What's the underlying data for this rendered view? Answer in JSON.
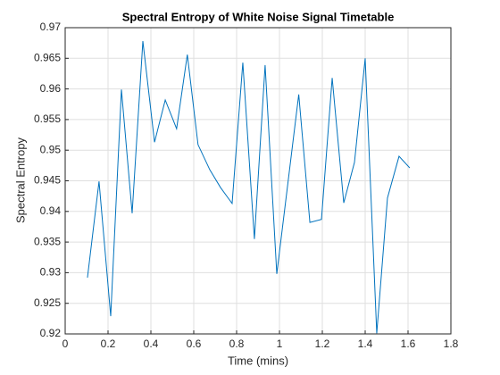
{
  "chart_data": {
    "type": "line",
    "title": "Spectral Entropy of White Noise Signal Timetable",
    "xlabel": "Time (mins)",
    "ylabel": "Spectral Entropy",
    "x": [
      0.104,
      0.158,
      0.2125,
      0.2625,
      0.3125,
      0.3625,
      0.417,
      0.467,
      0.52,
      0.57,
      0.62,
      0.675,
      0.725,
      0.779,
      0.829,
      0.883,
      0.933,
      0.9875,
      1.09,
      1.142,
      1.196,
      1.246,
      1.3,
      1.35,
      1.4,
      1.454,
      1.504,
      1.558,
      1.608
    ],
    "series": [
      {
        "name": "Spectral Entropy",
        "color": "#0072bd",
        "values": [
          0.9292,
          0.9449,
          0.9229,
          0.9599,
          0.9397,
          0.9678,
          0.9513,
          0.9582,
          0.9535,
          0.9656,
          0.9509,
          0.9468,
          0.9439,
          0.9413,
          0.9643,
          0.9355,
          0.9639,
          0.9298,
          0.9591,
          0.9382,
          0.9387,
          0.9618,
          0.9414,
          0.948,
          0.965,
          0.9201,
          0.9422,
          0.949,
          0.9471
        ]
      }
    ],
    "xlim": [
      0,
      1.8
    ],
    "xticks": [
      0,
      0.2,
      0.4,
      0.6,
      0.8,
      1,
      1.2,
      1.4,
      1.6,
      1.8
    ],
    "ylim": [
      0.92,
      0.97
    ],
    "yticks": [
      0.92,
      0.925,
      0.93,
      0.935,
      0.94,
      0.945,
      0.95,
      0.955,
      0.96,
      0.965,
      0.97
    ],
    "grid": true
  }
}
